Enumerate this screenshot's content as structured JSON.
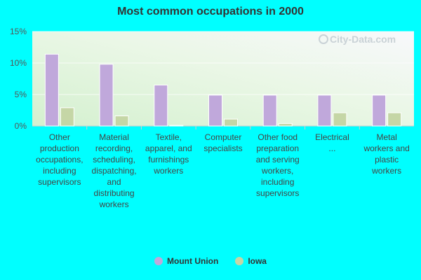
{
  "chart_data": {
    "type": "bar",
    "title": "Most common occupations in 2000",
    "categories": [
      "Other production occupations, including supervisors",
      "Material recording, scheduling, dispatching, and distributing workers",
      "Textile, apparel, and furnishings workers",
      "Computer specialists",
      "Other food preparation and serving workers, including supervisors",
      "Electrical ...",
      "Metal workers and plastic workers"
    ],
    "series": [
      {
        "name": "Mount Union",
        "values": [
          11.4,
          9.8,
          6.5,
          4.9,
          4.9,
          4.9,
          4.9
        ],
        "color": "#c0a8db"
      },
      {
        "name": "Iowa",
        "values": [
          2.9,
          1.6,
          0.1,
          1.1,
          0.4,
          2.1,
          2.1
        ],
        "color": "#c5d6a6"
      }
    ],
    "yticks": [
      "0%",
      "5%",
      "10%",
      "15%"
    ],
    "ylim": [
      0,
      15
    ],
    "grid": true,
    "legend": "bottom-center"
  },
  "watermark": "City-Data.com"
}
